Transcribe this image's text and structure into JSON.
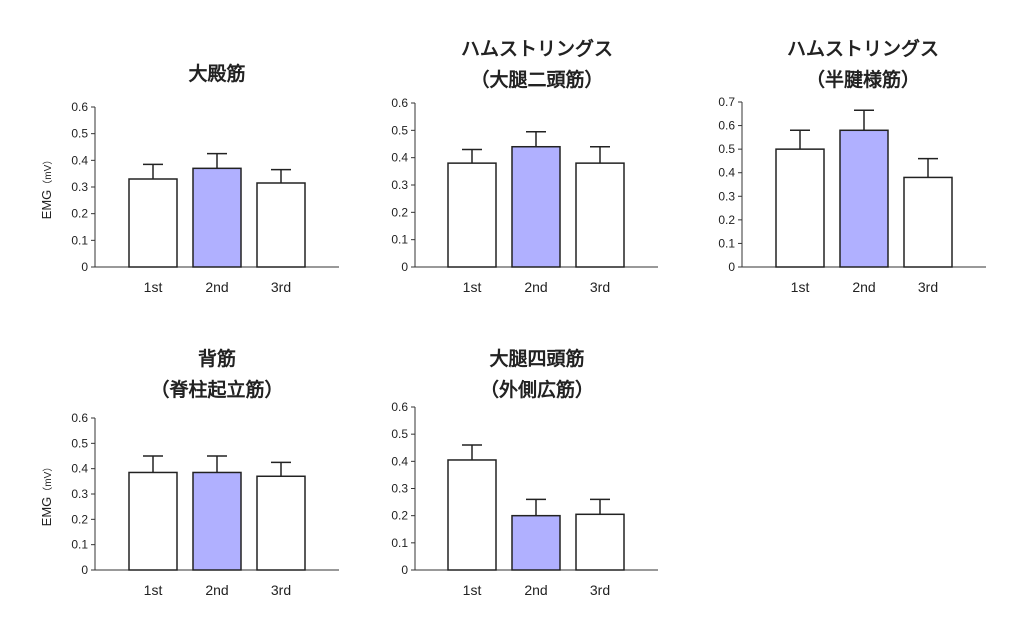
{
  "chart_data": [
    {
      "type": "bar",
      "title": [
        "大殿筋"
      ],
      "ylabel": "EMG",
      "yunit": "（mV）",
      "categories": [
        "1st",
        "2nd",
        "3rd"
      ],
      "values": [
        0.33,
        0.37,
        0.315
      ],
      "errors": [
        0.055,
        0.055,
        0.05
      ],
      "ylim": [
        0,
        0.6
      ],
      "yticks": [
        "0",
        "0.1",
        "0.2",
        "0.3",
        "0.4",
        "0.5",
        "0.6"
      ]
    },
    {
      "type": "bar",
      "title": [
        "ハムストリングス",
        "（大腿二頭筋）"
      ],
      "ylabel": "",
      "yunit": "",
      "categories": [
        "1st",
        "2nd",
        "3rd"
      ],
      "values": [
        0.38,
        0.44,
        0.38
      ],
      "errors": [
        0.05,
        0.055,
        0.06
      ],
      "ylim": [
        0,
        0.6
      ],
      "yticks": [
        "0",
        "0.1",
        "0.2",
        "0.3",
        "0.4",
        "0.5",
        "0.6"
      ]
    },
    {
      "type": "bar",
      "title": [
        "ハムストリングス",
        "（半腱様筋）"
      ],
      "ylabel": "",
      "yunit": "",
      "categories": [
        "1st",
        "2nd",
        "3rd"
      ],
      "values": [
        0.5,
        0.58,
        0.38
      ],
      "errors": [
        0.08,
        0.085,
        0.08
      ],
      "ylim": [
        0,
        0.7
      ],
      "yticks": [
        "0",
        "0.1",
        "0.2",
        "0.3",
        "0.4",
        "0.5",
        "0.6",
        "0.7"
      ]
    },
    {
      "type": "bar",
      "title": [
        "背筋",
        "（脊柱起立筋）"
      ],
      "ylabel": "EMG",
      "yunit": "（mV）",
      "categories": [
        "1st",
        "2nd",
        "3rd"
      ],
      "values": [
        0.385,
        0.385,
        0.37
      ],
      "errors": [
        0.065,
        0.065,
        0.055
      ],
      "ylim": [
        0,
        0.6
      ],
      "yticks": [
        "0",
        "0.1",
        "0.2",
        "0.3",
        "0.4",
        "0.5",
        "0.6"
      ]
    },
    {
      "type": "bar",
      "title": [
        "大腿四頭筋",
        "（外側広筋）"
      ],
      "ylabel": "",
      "yunit": "",
      "categories": [
        "1st",
        "2nd",
        "3rd"
      ],
      "values": [
        0.405,
        0.2,
        0.205
      ],
      "errors": [
        0.055,
        0.06,
        0.055
      ],
      "ylim": [
        0,
        0.6
      ],
      "yticks": [
        "0",
        "0.1",
        "0.2",
        "0.3",
        "0.4",
        "0.5",
        "0.6"
      ]
    }
  ],
  "colors": {
    "highlight_fill": "#b0b0ff",
    "normal_fill": "#ffffff",
    "bar_stroke": "#222222",
    "highlight_label": "#1a1ad6",
    "axis": "#333333"
  },
  "highlight_category": "2nd"
}
